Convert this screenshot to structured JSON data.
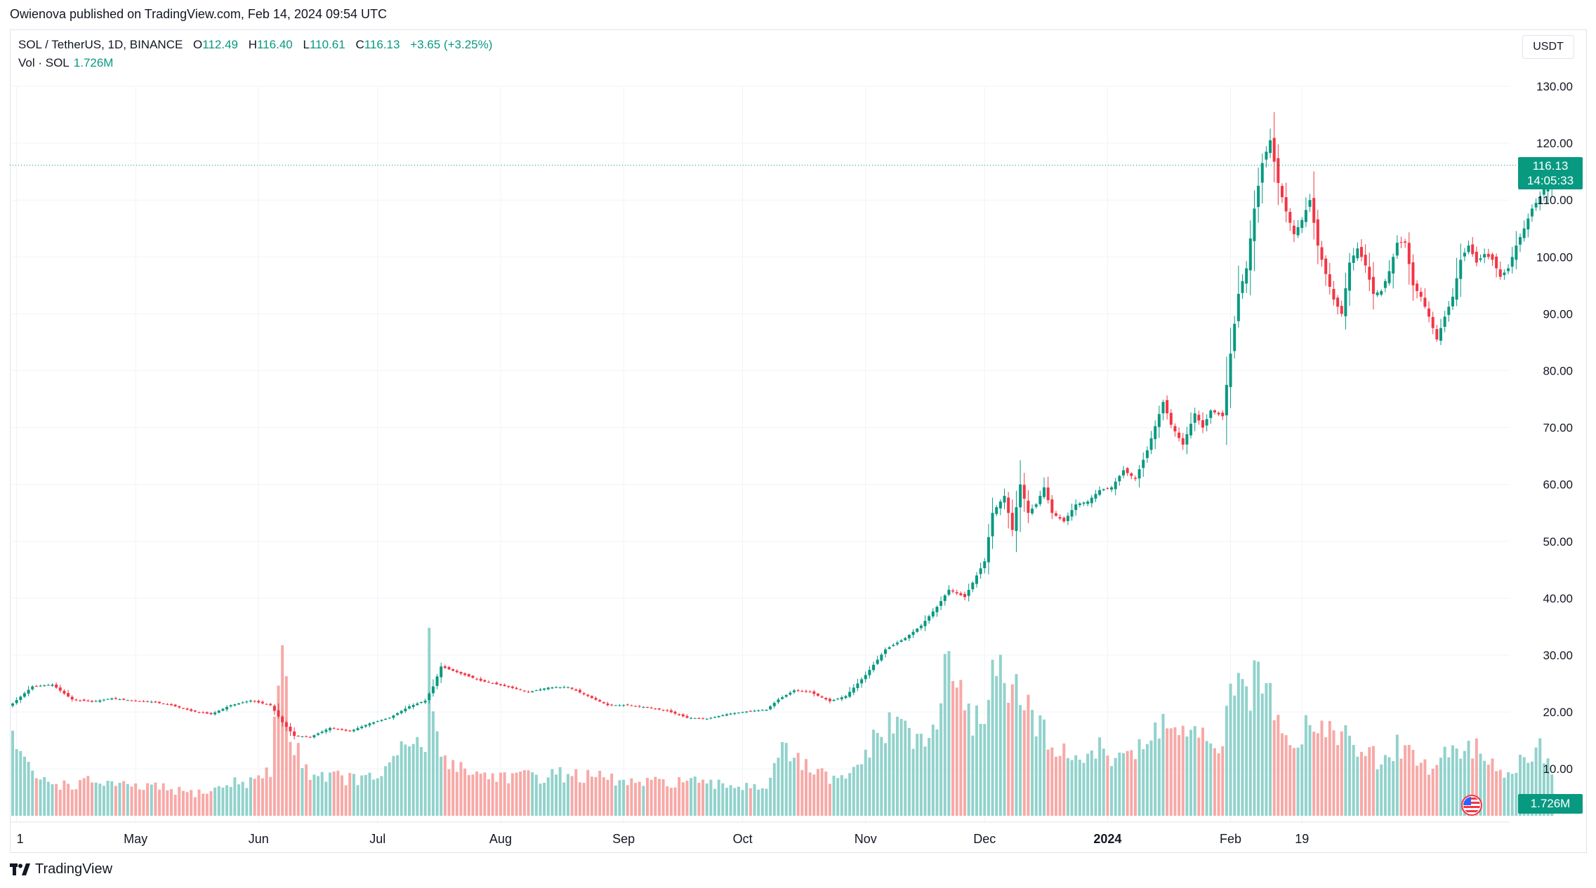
{
  "header": {
    "published_text": "Owienova published on TradingView.com, Feb 14, 2024 09:54 UTC"
  },
  "legend": {
    "symbol": "SOL / TetherUS, 1D, BINANCE",
    "o_label": "O",
    "o": "112.49",
    "h_label": "H",
    "h": "116.40",
    "l_label": "L",
    "l": "110.61",
    "c_label": "C",
    "c": "116.13",
    "change": "+3.65 (+3.25%)",
    "vol_label": "Vol · SOL",
    "vol_value": "1.726M"
  },
  "currency_button": "USDT",
  "last_price": {
    "price": "116.13",
    "countdown": "14:05:33"
  },
  "volume_tag": "1.726M",
  "brand": "TradingView",
  "colors": {
    "up": "#089981",
    "down": "#f23645",
    "vol_up": "#92d2cc",
    "vol_down": "#f7a9a7",
    "grid": "#f0f3fa"
  },
  "chart_data": {
    "type": "candlestick",
    "title": "SOL / TetherUS, 1D, BINANCE",
    "y_ticks": [
      "130.00",
      "120.00",
      "110.00",
      "100.00",
      "90.00",
      "80.00",
      "70.00",
      "60.00",
      "50.00",
      "40.00",
      "30.00",
      "20.00",
      "10.00"
    ],
    "ylim": [
      3.5,
      138.0
    ],
    "x_ticks": [
      {
        "label": "1",
        "month": 4,
        "day": 1
      },
      {
        "label": "May",
        "month": 5,
        "day": 1
      },
      {
        "label": "Jun",
        "month": 6,
        "day": 1
      },
      {
        "label": "Jul",
        "month": 7,
        "day": 1
      },
      {
        "label": "Aug",
        "month": 8,
        "day": 1
      },
      {
        "label": "Sep",
        "month": 9,
        "day": 1
      },
      {
        "label": "Oct",
        "month": 10,
        "day": 1
      },
      {
        "label": "Nov",
        "month": 11,
        "day": 1
      },
      {
        "label": "Dec",
        "month": 12,
        "day": 1
      },
      {
        "label": "2024",
        "month": 13,
        "day": 1
      },
      {
        "label": "Feb",
        "month": 14,
        "day": 1
      },
      {
        "label": "19",
        "month": 14,
        "day": 19
      }
    ],
    "close_anchors": [
      [
        0,
        21.5
      ],
      [
        5,
        24.5
      ],
      [
        10,
        24.8
      ],
      [
        15,
        22.2
      ],
      [
        20,
        21.8
      ],
      [
        25,
        22.4
      ],
      [
        30,
        22.0
      ],
      [
        35,
        21.8
      ],
      [
        40,
        21.2
      ],
      [
        45,
        20.2
      ],
      [
        50,
        19.6
      ],
      [
        55,
        21.2
      ],
      [
        60,
        22.0
      ],
      [
        65,
        21.2
      ],
      [
        68,
        18.2
      ],
      [
        71,
        15.8
      ],
      [
        75,
        15.6
      ],
      [
        80,
        17.2
      ],
      [
        85,
        16.6
      ],
      [
        90,
        18.0
      ],
      [
        95,
        19.0
      ],
      [
        100,
        21.0
      ],
      [
        104,
        22.0
      ],
      [
        106,
        24.5
      ],
      [
        108,
        28.0
      ],
      [
        112,
        27.0
      ],
      [
        118,
        25.5
      ],
      [
        125,
        24.4
      ],
      [
        130,
        23.5
      ],
      [
        135,
        24.3
      ],
      [
        140,
        24.4
      ],
      [
        145,
        22.8
      ],
      [
        150,
        21.2
      ],
      [
        155,
        21.2
      ],
      [
        160,
        20.8
      ],
      [
        165,
        20.2
      ],
      [
        170,
        19.0
      ],
      [
        175,
        18.8
      ],
      [
        180,
        19.6
      ],
      [
        185,
        20.1
      ],
      [
        190,
        20.4
      ],
      [
        193,
        22.2
      ],
      [
        197,
        23.8
      ],
      [
        201,
        23.5
      ],
      [
        206,
        21.9
      ],
      [
        210,
        22.8
      ],
      [
        215,
        26.5
      ],
      [
        220,
        31.0
      ],
      [
        225,
        33.0
      ],
      [
        229,
        35.2
      ],
      [
        233,
        38.5
      ],
      [
        236,
        41.5
      ],
      [
        240,
        40.2
      ],
      [
        243,
        44.0
      ],
      [
        245,
        46.5
      ],
      [
        247,
        55.0
      ],
      [
        250,
        58.0
      ],
      [
        252,
        52.0
      ],
      [
        254,
        60.0
      ],
      [
        256,
        55.0
      ],
      [
        258,
        56.5
      ],
      [
        260,
        59.5
      ],
      [
        262,
        55.0
      ],
      [
        265,
        53.5
      ],
      [
        268,
        56.5
      ],
      [
        271,
        57.0
      ],
      [
        274,
        59.0
      ],
      [
        277,
        59.5
      ],
      [
        280,
        62.5
      ],
      [
        283,
        61.0
      ],
      [
        286,
        66.0
      ],
      [
        290,
        74.5
      ],
      [
        292,
        70.5
      ],
      [
        295,
        67.0
      ],
      [
        298,
        72.5
      ],
      [
        300,
        70.0
      ],
      [
        302,
        73.0
      ],
      [
        305,
        72.0
      ],
      [
        307,
        83.0
      ],
      [
        309,
        93.5
      ],
      [
        311,
        98.0
      ],
      [
        313,
        108.5
      ],
      [
        315,
        116.5
      ],
      [
        317,
        120.5
      ],
      [
        319,
        113.0
      ],
      [
        321,
        108.0
      ],
      [
        323,
        104.0
      ],
      [
        325,
        106.5
      ],
      [
        327,
        110.0
      ],
      [
        329,
        102.0
      ],
      [
        331,
        97.0
      ],
      [
        333,
        92.5
      ],
      [
        335,
        90.0
      ],
      [
        337,
        99.0
      ],
      [
        339,
        101.5
      ],
      [
        341,
        98.5
      ],
      [
        343,
        93.5
      ],
      [
        345,
        94.0
      ],
      [
        347,
        97.5
      ],
      [
        349,
        102.5
      ],
      [
        351,
        102.5
      ],
      [
        353,
        95.0
      ],
      [
        355,
        93.0
      ],
      [
        357,
        89.5
      ],
      [
        359,
        85.5
      ],
      [
        361,
        89.5
      ],
      [
        363,
        93.0
      ],
      [
        365,
        99.5
      ],
      [
        367,
        102.0
      ],
      [
        369,
        99.0
      ],
      [
        371,
        100.5
      ],
      [
        373,
        99.5
      ],
      [
        375,
        96.5
      ],
      [
        377,
        98.0
      ],
      [
        379,
        102.0
      ],
      [
        381,
        105.0
      ],
      [
        383,
        108.5
      ],
      [
        385,
        110.5
      ],
      [
        387,
        113.5
      ],
      [
        388,
        116.13
      ]
    ],
    "volume_anchors": [
      [
        0,
        13.4
      ],
      [
        5,
        6.6
      ],
      [
        10,
        5.5
      ],
      [
        15,
        5.1
      ],
      [
        20,
        5.8
      ],
      [
        25,
        5.4
      ],
      [
        30,
        4.6
      ],
      [
        35,
        4.9
      ],
      [
        40,
        4.3
      ],
      [
        45,
        3.8
      ],
      [
        50,
        4.1
      ],
      [
        55,
        5.5
      ],
      [
        60,
        5.8
      ],
      [
        65,
        7.2
      ],
      [
        68,
        32.0
      ],
      [
        70,
        12.0
      ],
      [
        72,
        10.5
      ],
      [
        75,
        7.2
      ],
      [
        80,
        6.8
      ],
      [
        85,
        6.2
      ],
      [
        90,
        6.1
      ],
      [
        95,
        8.0
      ],
      [
        100,
        12.4
      ],
      [
        104,
        11.0
      ],
      [
        105,
        36.0
      ],
      [
        106,
        15.0
      ],
      [
        108,
        10.5
      ],
      [
        112,
        8.5
      ],
      [
        118,
        6.8
      ],
      [
        125,
        6.7
      ],
      [
        130,
        6.5
      ],
      [
        135,
        6.8
      ],
      [
        140,
        7.0
      ],
      [
        145,
        6.5
      ],
      [
        150,
        6.2
      ],
      [
        155,
        5.5
      ],
      [
        160,
        5.4
      ],
      [
        165,
        5.6
      ],
      [
        170,
        6.0
      ],
      [
        175,
        5.0
      ],
      [
        180,
        5.2
      ],
      [
        185,
        5.1
      ],
      [
        190,
        5.0
      ],
      [
        193,
        11.0
      ],
      [
        197,
        9.5
      ],
      [
        201,
        7.8
      ],
      [
        206,
        6.1
      ],
      [
        210,
        5.8
      ],
      [
        215,
        10.5
      ],
      [
        220,
        14.5
      ],
      [
        225,
        15.5
      ],
      [
        229,
        11.5
      ],
      [
        233,
        15.0
      ],
      [
        236,
        29.0
      ],
      [
        240,
        16.0
      ],
      [
        243,
        16.2
      ],
      [
        245,
        18.0
      ],
      [
        247,
        24.0
      ],
      [
        250,
        25.4
      ],
      [
        252,
        20.5
      ],
      [
        254,
        19.5
      ],
      [
        256,
        18.7
      ],
      [
        258,
        14.0
      ],
      [
        260,
        14.5
      ],
      [
        262,
        12.0
      ],
      [
        265,
        10.2
      ],
      [
        268,
        10.4
      ],
      [
        271,
        9.7
      ],
      [
        274,
        11.0
      ],
      [
        277,
        9.8
      ],
      [
        280,
        11.5
      ],
      [
        283,
        10.1
      ],
      [
        286,
        12.0
      ],
      [
        290,
        16.0
      ],
      [
        292,
        15.0
      ],
      [
        295,
        13.5
      ],
      [
        298,
        13.0
      ],
      [
        300,
        12.8
      ],
      [
        302,
        10.5
      ],
      [
        305,
        13.2
      ],
      [
        307,
        19.0
      ],
      [
        309,
        20.0
      ],
      [
        311,
        21.3
      ],
      [
        313,
        22.0
      ],
      [
        315,
        21.6
      ],
      [
        317,
        21.2
      ],
      [
        319,
        18.0
      ],
      [
        321,
        15.0
      ],
      [
        323,
        12.5
      ],
      [
        325,
        14.0
      ],
      [
        327,
        16.5
      ],
      [
        329,
        15.7
      ],
      [
        331,
        14.0
      ],
      [
        333,
        15.5
      ],
      [
        335,
        14.0
      ],
      [
        337,
        11.8
      ],
      [
        339,
        10.9
      ],
      [
        341,
        10.5
      ],
      [
        343,
        9.8
      ],
      [
        345,
        8.5
      ],
      [
        347,
        9.5
      ],
      [
        349,
        11.5
      ],
      [
        351,
        12.0
      ],
      [
        353,
        10.0
      ],
      [
        355,
        9.8
      ],
      [
        357,
        7.0
      ],
      [
        359,
        8.4
      ],
      [
        361,
        11.0
      ],
      [
        363,
        11.5
      ],
      [
        365,
        9.8
      ],
      [
        367,
        12.5
      ],
      [
        369,
        11.0
      ],
      [
        371,
        8.5
      ],
      [
        373,
        8.0
      ],
      [
        375,
        9.1
      ],
      [
        377,
        6.8
      ],
      [
        379,
        8.6
      ],
      [
        381,
        9.6
      ],
      [
        383,
        11.2
      ],
      [
        385,
        11.5
      ],
      [
        387,
        10.4
      ],
      [
        388,
        7.8
      ]
    ],
    "axis_left_date": "2023-03-31",
    "last_close": 116.13
  }
}
